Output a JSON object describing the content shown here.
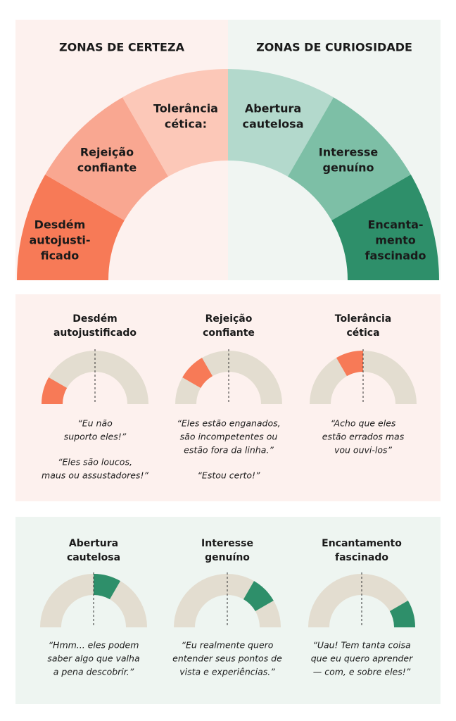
{
  "top": {
    "left_title": "ZONAS DE CERTEZA",
    "right_title": "ZONAS DE CURIOSIDADE",
    "segments": [
      {
        "lines": [
          "Desdém",
          "autojusti-",
          "ficado"
        ]
      },
      {
        "lines": [
          "Rejeição",
          "confiante"
        ]
      },
      {
        "lines": [
          "Tolerância",
          "cética:"
        ]
      },
      {
        "lines": [
          "Abertura",
          "cautelosa"
        ]
      },
      {
        "lines": [
          "Interesse",
          "genuíno"
        ]
      },
      {
        "lines": [
          "Encanta-",
          "mento",
          "fascinado"
        ]
      }
    ]
  },
  "certainty_cards": [
    {
      "title_lines": [
        "Desdém",
        "autojustificado"
      ],
      "quotes": [
        [
          "“Eu não",
          "suporto eles!”"
        ],
        [
          "“Eles são loucos,",
          "maus ou assustadores!”"
        ]
      ]
    },
    {
      "title_lines": [
        "Rejeição",
        "confiante"
      ],
      "quotes": [
        [
          "“Eles estão enganados,",
          "são incompetentes ou",
          "estão fora da linha.”"
        ],
        [
          "“Estou certo!”"
        ]
      ]
    },
    {
      "title_lines": [
        "Tolerância",
        "cética"
      ],
      "quotes": [
        [
          "“Acho que eles",
          "estão errados mas",
          "vou ouvi-los”"
        ]
      ]
    }
  ],
  "curiosity_cards": [
    {
      "title_lines": [
        "Abertura",
        "cautelosa"
      ],
      "quotes": [
        [
          "“Hmm... eles podem",
          "saber algo que valha",
          "a pena descobrir.”"
        ]
      ]
    },
    {
      "title_lines": [
        "Interesse",
        "genuíno"
      ],
      "quotes": [
        [
          "“Eu realmente quero",
          "entender seus pontos de",
          "vista e experiências.”"
        ]
      ]
    },
    {
      "title_lines": [
        "Encantamento",
        "fascinado"
      ],
      "quotes": [
        [
          "“Uau! Tem tanta coisa",
          "que eu quero aprender",
          "— com, e sobre eles!”"
        ]
      ]
    }
  ]
}
